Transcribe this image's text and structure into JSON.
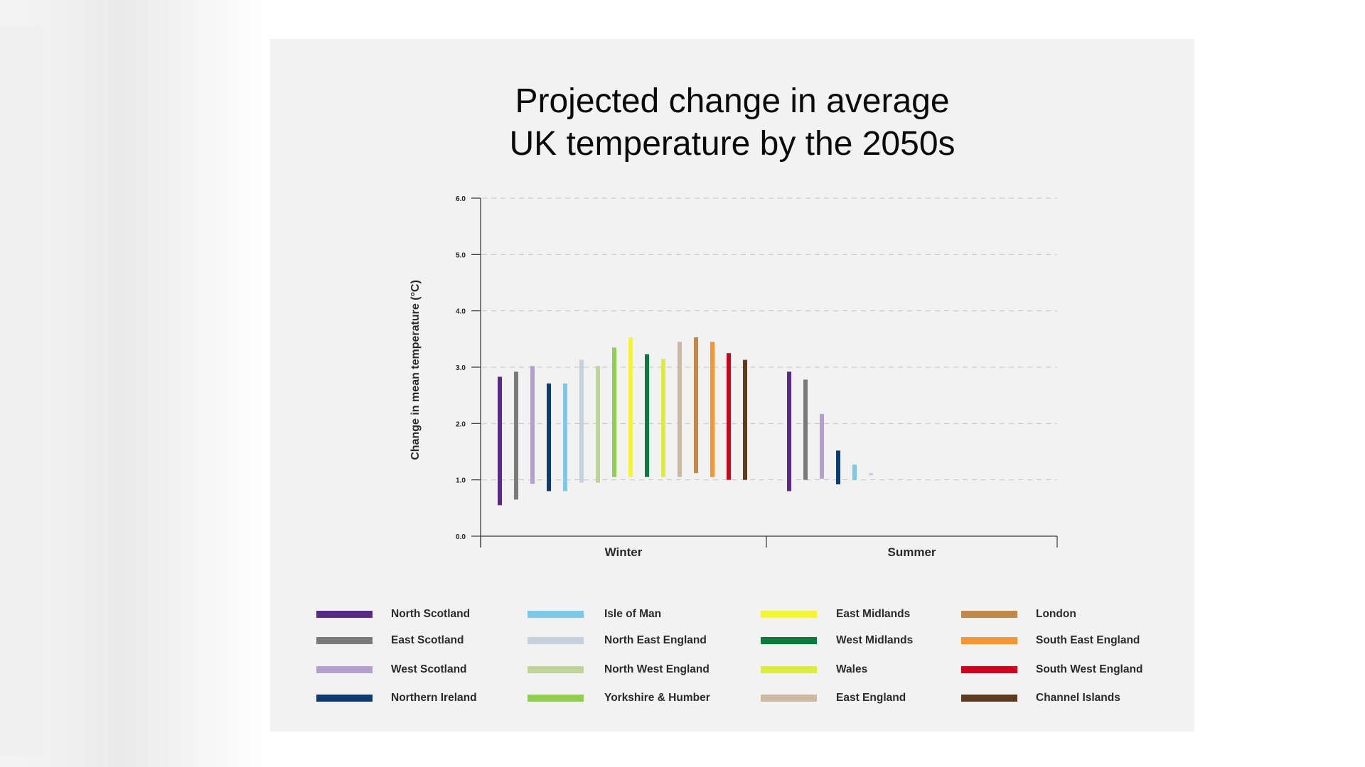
{
  "chart_data": {
    "type": "bar",
    "title": [
      "Projected change in average",
      "UK temperature by the 2050s"
    ],
    "ylabel": "Change in mean temperature (°C)",
    "ylim": [
      0,
      6
    ],
    "yticks": [
      "0.0",
      "1.0",
      "2.0",
      "3.0",
      "4.0",
      "5.0",
      "6.0"
    ],
    "categories": [
      "Winter",
      "Summer"
    ],
    "grid": "dashed horizontal",
    "series": [
      {
        "name": "North Scotland",
        "color": "#5b2a86",
        "winter": [
          0.55,
          2.83
        ],
        "summer": [
          0.8,
          2.92
        ]
      },
      {
        "name": "East Scotland",
        "color": "#7a7a7a",
        "winter": [
          0.65,
          2.92
        ],
        "summer": [
          1.0,
          2.78
        ]
      },
      {
        "name": "West Scotland",
        "color": "#b3a0cd",
        "winter": [
          0.93,
          3.02
        ],
        "summer": [
          1.02,
          2.17
        ]
      },
      {
        "name": "Northern Ireland",
        "color": "#0d3b73",
        "winter": [
          0.8,
          2.71
        ],
        "summer": [
          0.92,
          1.52
        ]
      },
      {
        "name": "Isle of Man",
        "color": "#7ec8e8",
        "winter": [
          0.8,
          2.71
        ],
        "summer": [
          1.0,
          1.27
        ]
      },
      {
        "name": "North East England",
        "color": "#c6d2db",
        "winter": [
          0.95,
          3.13
        ],
        "summer": [
          1.08,
          1.12
        ]
      },
      {
        "name": "North West England",
        "color": "#bfd39b",
        "winter": [
          0.95,
          3.02
        ],
        "summer": null
      },
      {
        "name": "Yorkshire & Humber",
        "color": "#8fd14f",
        "winter": [
          1.05,
          3.35
        ],
        "summer": null
      },
      {
        "name": "East Midlands",
        "color": "#f5f534",
        "winter": [
          1.05,
          3.53
        ],
        "summer": null
      },
      {
        "name": "West Midlands",
        "color": "#0b7a3e",
        "winter": [
          1.05,
          3.23
        ],
        "summer": null
      },
      {
        "name": "Wales",
        "color": "#dbec3a",
        "winter": [
          1.05,
          3.15
        ],
        "summer": null
      },
      {
        "name": "East England",
        "color": "#cdb8a2",
        "winter": [
          1.05,
          3.45
        ],
        "summer": null
      },
      {
        "name": "London",
        "color": "#c0894a",
        "winter": [
          1.12,
          3.53
        ],
        "summer": null
      },
      {
        "name": "South East England",
        "color": "#f39633",
        "winter": [
          1.05,
          3.45
        ],
        "summer": null
      },
      {
        "name": "South West England",
        "color": "#d0021b",
        "winter": [
          1.0,
          3.25
        ],
        "summer": null
      },
      {
        "name": "Channel Islands",
        "color": "#5e3a1e",
        "winter": [
          1.0,
          3.13
        ],
        "summer": null
      }
    ]
  }
}
